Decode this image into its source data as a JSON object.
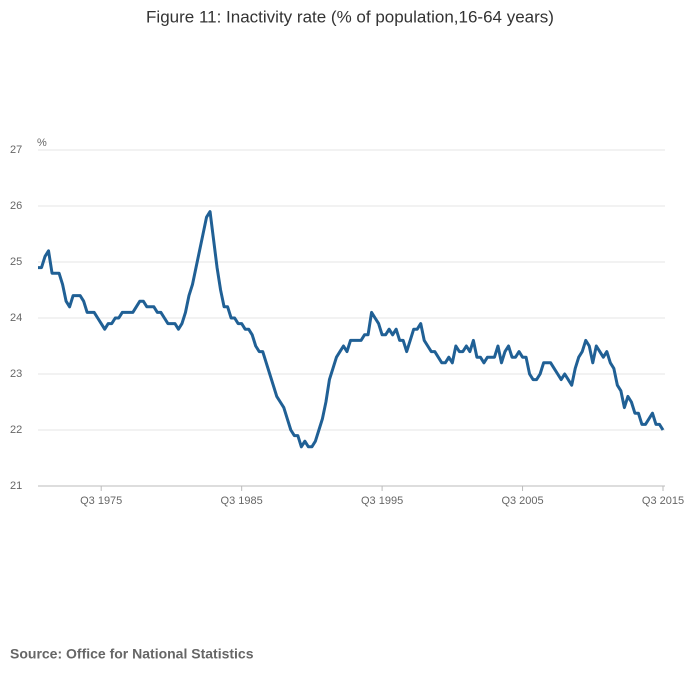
{
  "chart_data": {
    "type": "line",
    "title": "Figure 11: Inactivity rate (% of population,16-64 years)",
    "y_unit": "%",
    "source": "Source: Office for National Statistics",
    "categories": [
      null,
      null,
      null,
      null,
      null,
      null,
      null,
      null,
      null,
      null,
      null,
      null,
      null,
      null,
      null,
      null,
      null,
      null,
      "Q3 1975",
      null,
      null,
      null,
      null,
      null,
      null,
      null,
      null,
      null,
      null,
      null,
      null,
      null,
      null,
      null,
      null,
      null,
      null,
      null,
      null,
      null,
      null,
      null,
      null,
      null,
      null,
      null,
      null,
      null,
      null,
      null,
      null,
      null,
      null,
      null,
      null,
      null,
      null,
      null,
      "Q3 1985",
      null,
      null,
      null,
      null,
      null,
      null,
      null,
      null,
      null,
      null,
      null,
      null,
      null,
      null,
      null,
      null,
      null,
      null,
      null,
      null,
      null,
      null,
      null,
      null,
      null,
      null,
      null,
      null,
      null,
      null,
      null,
      null,
      null,
      null,
      null,
      null,
      null,
      null,
      null,
      "Q3 1995",
      null,
      null,
      null,
      null,
      null,
      null,
      null,
      null,
      null,
      null,
      null,
      null,
      null,
      null,
      null,
      null,
      null,
      null,
      null,
      null,
      null,
      null,
      null,
      null,
      null,
      null,
      null,
      null,
      null,
      null,
      null,
      null,
      null,
      null,
      null,
      null,
      null,
      null,
      null,
      "Q3 2005",
      null,
      null,
      null,
      null,
      null,
      null,
      null,
      null,
      null,
      null,
      null,
      null,
      null,
      null,
      null,
      null,
      null,
      null,
      null,
      null,
      null,
      null,
      null,
      null,
      null,
      null,
      null,
      null,
      null,
      null,
      null,
      null,
      null,
      null,
      null,
      null,
      null,
      null,
      null,
      "Q3 2015"
    ],
    "series": [
      {
        "name": "Inactivity rate",
        "color": "#206095",
        "values": [
          24.9,
          24.9,
          25.1,
          25.2,
          24.8,
          24.8,
          24.8,
          24.6,
          24.3,
          24.2,
          24.4,
          24.4,
          24.4,
          24.3,
          24.1,
          24.1,
          24.1,
          24.0,
          23.9,
          23.8,
          23.9,
          23.9,
          24.0,
          24.0,
          24.1,
          24.1,
          24.1,
          24.1,
          24.2,
          24.3,
          24.3,
          24.2,
          24.2,
          24.2,
          24.1,
          24.1,
          24.0,
          23.9,
          23.9,
          23.9,
          23.8,
          23.9,
          24.1,
          24.4,
          24.6,
          24.9,
          25.2,
          25.5,
          25.8,
          25.9,
          25.4,
          24.9,
          24.5,
          24.2,
          24.2,
          24.0,
          24.0,
          23.9,
          23.9,
          23.8,
          23.8,
          23.7,
          23.5,
          23.4,
          23.4,
          23.2,
          23.0,
          22.8,
          22.6,
          22.5,
          22.4,
          22.2,
          22.0,
          21.9,
          21.9,
          21.7,
          21.8,
          21.7,
          21.7,
          21.8,
          22.0,
          22.2,
          22.5,
          22.9,
          23.1,
          23.3,
          23.4,
          23.5,
          23.4,
          23.6,
          23.6,
          23.6,
          23.6,
          23.7,
          23.7,
          24.1,
          24.0,
          23.9,
          23.7,
          23.7,
          23.8,
          23.7,
          23.8,
          23.6,
          23.6,
          23.4,
          23.6,
          23.8,
          23.8,
          23.9,
          23.6,
          23.5,
          23.4,
          23.4,
          23.3,
          23.2,
          23.2,
          23.3,
          23.2,
          23.5,
          23.4,
          23.4,
          23.5,
          23.4,
          23.6,
          23.3,
          23.3,
          23.2,
          23.3,
          23.3,
          23.3,
          23.5,
          23.2,
          23.4,
          23.5,
          23.3,
          23.3,
          23.4,
          23.3,
          23.3,
          23.0,
          22.9,
          22.9,
          23.0,
          23.2,
          23.2,
          23.2,
          23.1,
          23.0,
          22.9,
          23.0,
          22.9,
          22.8,
          23.1,
          23.3,
          23.4,
          23.6,
          23.5,
          23.2,
          23.5,
          23.4,
          23.3,
          23.4,
          23.2,
          23.1,
          22.8,
          22.7,
          22.4,
          22.6,
          22.5,
          22.3,
          22.3,
          22.1,
          22.1,
          22.2,
          22.3,
          22.1,
          22.1,
          22.0
        ]
      }
    ],
    "ylim": [
      21,
      27
    ],
    "yticks": [
      21,
      22,
      23,
      24,
      25,
      26,
      27
    ],
    "grid": true
  }
}
